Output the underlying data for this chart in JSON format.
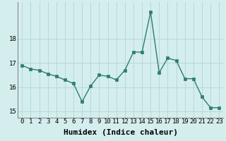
{
  "x": [
    0,
    1,
    2,
    3,
    4,
    5,
    6,
    7,
    8,
    9,
    10,
    11,
    12,
    13,
    14,
    15,
    16,
    17,
    18,
    19,
    20,
    21,
    22,
    23
  ],
  "y": [
    16.9,
    16.75,
    16.7,
    16.55,
    16.45,
    16.3,
    16.15,
    15.4,
    16.05,
    16.5,
    16.45,
    16.3,
    16.7,
    17.45,
    17.45,
    19.1,
    16.6,
    17.2,
    17.1,
    16.35,
    16.35,
    15.6,
    15.15,
    15.15
  ],
  "line_color": "#2e7d6e",
  "marker": "s",
  "marker_size": 2.5,
  "bg_color": "#d4eeee",
  "grid_color": "#b8d8d8",
  "xlabel": "Humidex (Indice chaleur)",
  "ylim": [
    14.75,
    19.5
  ],
  "xlim": [
    -0.5,
    23.5
  ],
  "yticks": [
    15,
    16,
    17,
    18
  ],
  "xticks": [
    0,
    1,
    2,
    3,
    4,
    5,
    6,
    7,
    8,
    9,
    10,
    11,
    12,
    13,
    14,
    15,
    16,
    17,
    18,
    19,
    20,
    21,
    22,
    23
  ],
  "tick_fontsize": 6.5,
  "xlabel_fontsize": 8,
  "line_width": 1.0
}
